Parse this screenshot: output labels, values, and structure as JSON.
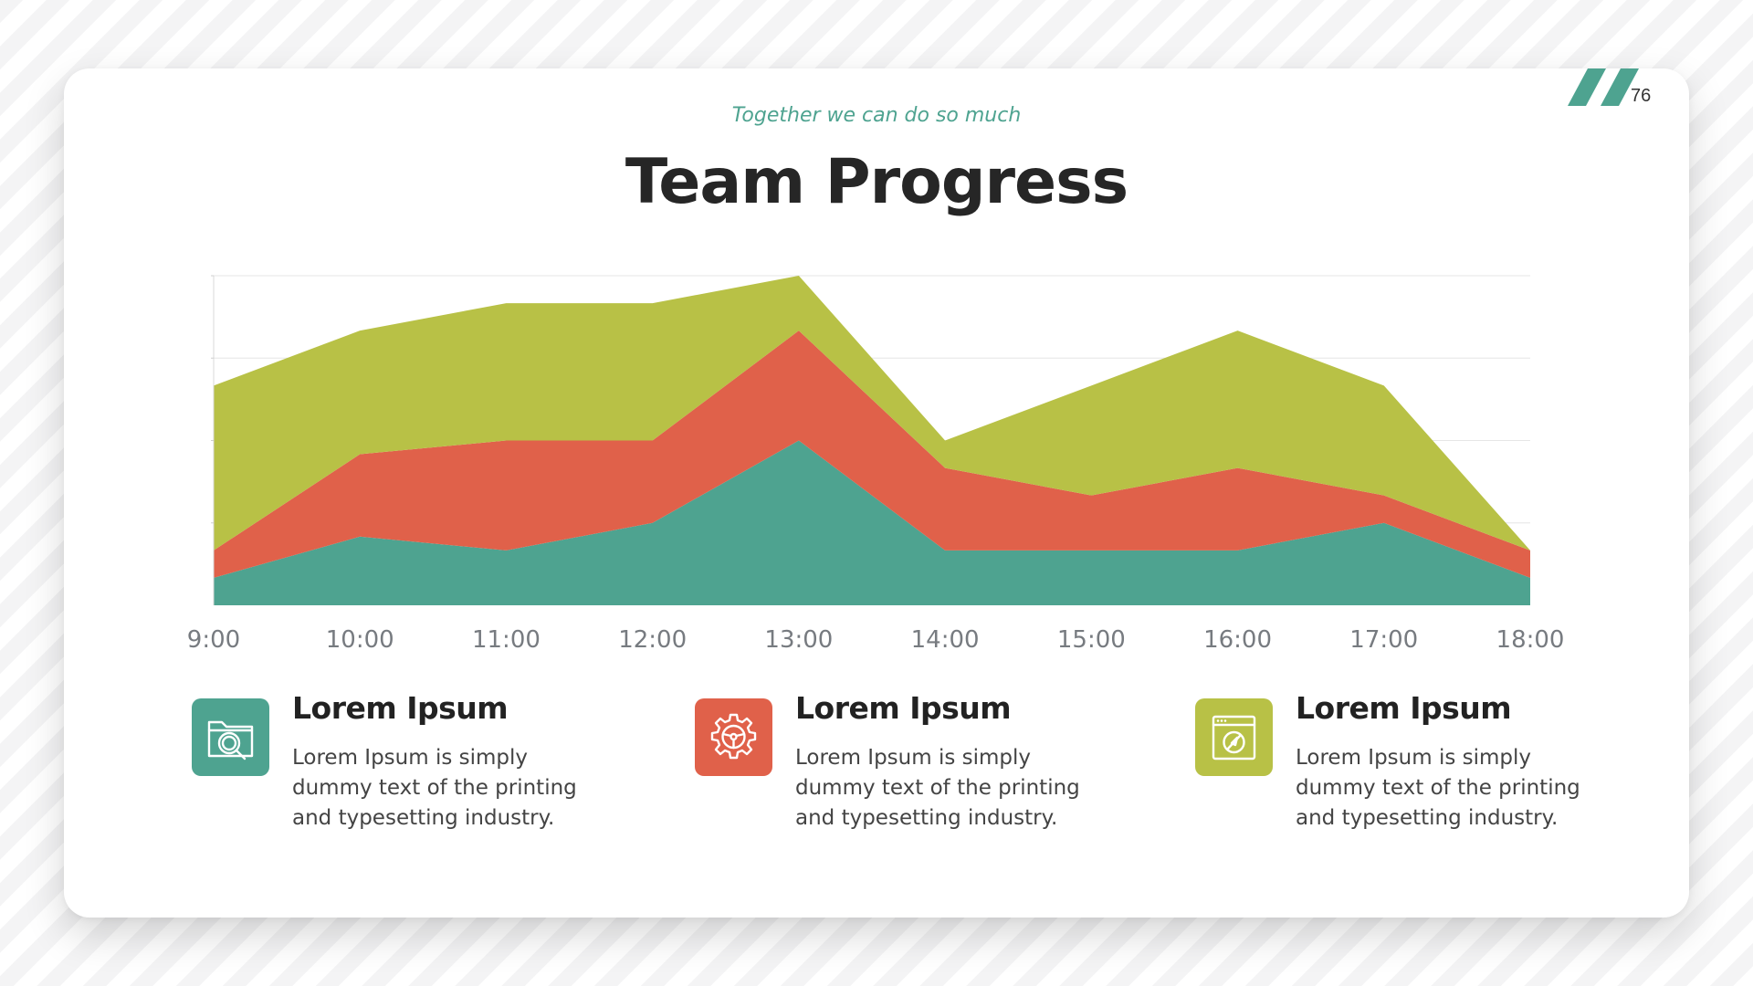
{
  "header": {
    "subtitle": "Together we can do so much",
    "title": "Team Progress",
    "page_number": "76"
  },
  "colors": {
    "teal": "#4ea390",
    "red": "#e0614a",
    "olive": "#b8c146",
    "title_text": "#262626",
    "axis_text": "#777b80"
  },
  "chart_data": {
    "type": "area",
    "stacked": true,
    "title": "Team Progress",
    "categories": [
      "9:00",
      "10:00",
      "11:00",
      "12:00",
      "13:00",
      "14:00",
      "15:00",
      "16:00",
      "17:00",
      "18:00"
    ],
    "ylim": [
      0,
      12
    ],
    "yticks_shown": false,
    "grid": "horizontal",
    "series": [
      {
        "color": "#4ea390",
        "values": [
          1,
          2.5,
          2,
          3,
          6,
          2,
          2,
          2,
          3,
          1
        ]
      },
      {
        "color": "#e0614a",
        "values": [
          1,
          3,
          4,
          3,
          4,
          3,
          2,
          3,
          1,
          1
        ]
      },
      {
        "color": "#b8c146",
        "values": [
          6,
          4.5,
          5,
          5,
          2,
          1,
          4,
          5,
          4,
          0
        ]
      }
    ]
  },
  "features": [
    {
      "icon": "folder-search-icon",
      "color": "#4ea390",
      "title": "Lorem Ipsum",
      "lines": [
        "Lorem Ipsum is simply",
        "dummy text of the printing",
        "and typesetting industry."
      ]
    },
    {
      "icon": "gear-steering-icon",
      "color": "#e0614a",
      "title": "Lorem Ipsum",
      "lines": [
        "Lorem Ipsum is simply",
        "dummy text of the printing",
        "and typesetting industry."
      ]
    },
    {
      "icon": "browser-compass-icon",
      "color": "#b8c146",
      "title": "Lorem Ipsum",
      "lines": [
        "Lorem Ipsum is simply",
        "dummy text of the printing",
        "and typesetting industry."
      ]
    }
  ]
}
